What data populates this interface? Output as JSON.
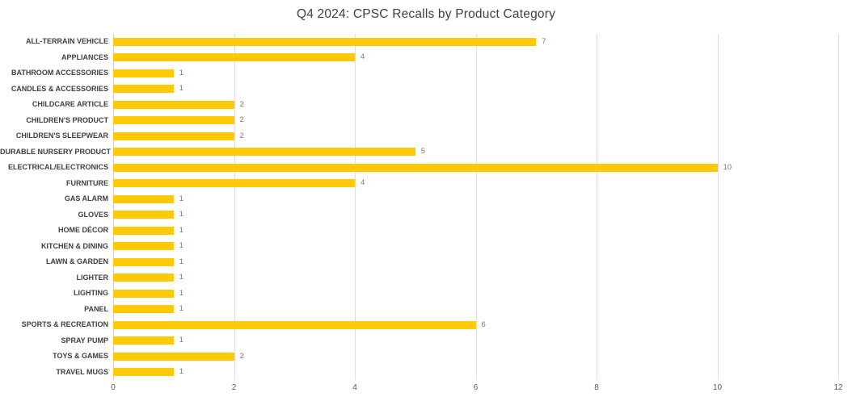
{
  "chart_data": {
    "type": "bar",
    "orientation": "horizontal",
    "title": "Q4 2024: CPSC Recalls by Product Category",
    "categories": [
      "ALL-TERRAIN VEHICLE",
      "APPLIANCES",
      "BATHROOM ACCESSORIES",
      "CANDLES & ACCESSORIES",
      "CHILDCARE ARTICLE",
      "CHILDREN'S PRODUCT",
      "CHILDREN'S SLEEPWEAR",
      "DURABLE NURSERY PRODUCT",
      "ELECTRICAL/ELECTRONICS",
      "FURNITURE",
      "GAS ALARM",
      "GLOVES",
      "HOME DÉCOR",
      "KITCHEN & DINING",
      "LAWN & GARDEN",
      "LIGHTER",
      "LIGHTING",
      "PANEL",
      "SPORTS & RECREATION",
      "SPRAY PUMP",
      "TOYS & GAMES",
      "TRAVEL MUGS"
    ],
    "values": [
      7,
      4,
      1,
      1,
      2,
      2,
      2,
      5,
      10,
      4,
      1,
      1,
      1,
      1,
      1,
      1,
      1,
      1,
      6,
      1,
      2,
      1
    ],
    "xlabel": "",
    "ylabel": "",
    "xlim": [
      0,
      12
    ],
    "xticks": [
      0,
      2,
      4,
      6,
      8,
      10,
      12
    ],
    "grid": true,
    "legend": false,
    "data_labels": true,
    "colors": {
      "bar": "#FFC907",
      "title": "#3F3F3F",
      "category_label": "#404040",
      "value_label": "#8C7373",
      "x_tick_label": "#595959",
      "gridline": "#E6DBDB",
      "axis_line": "#D2C9C9",
      "background": "#FFFFFF"
    }
  }
}
